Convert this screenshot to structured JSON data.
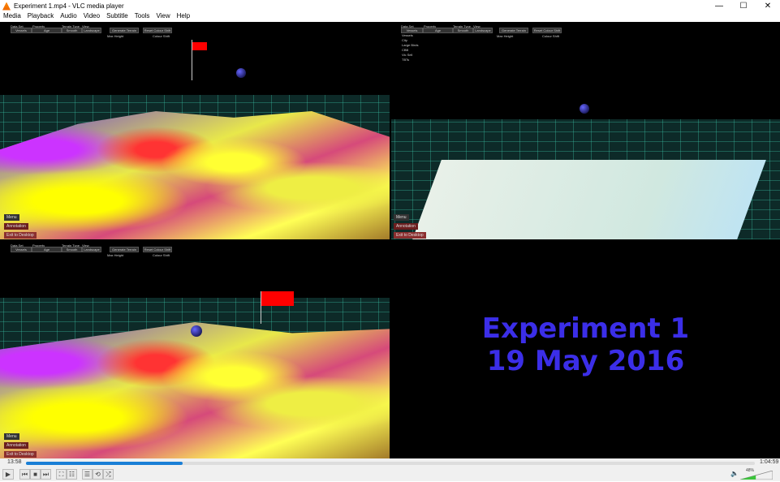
{
  "window": {
    "title": "Experiment 1.mp4 - VLC media player",
    "minimize": "—",
    "maximize": "☐",
    "close": "✕"
  },
  "menu": [
    "Media",
    "Playback",
    "Audio",
    "Video",
    "Subtitle",
    "Tools",
    "View",
    "Help"
  ],
  "video": {
    "panel_labels": {
      "data_set": "Data Set",
      "property": "Property",
      "terrain_type": "Terrain Type",
      "view": "View",
      "generate": "Generate Terrain",
      "reset": "Reset Colour Shift",
      "max_height": "Max Height",
      "colour_shift": "Colour Shift"
    },
    "top_left": {
      "data_set": "Vessels",
      "property": "Age",
      "terrain_type": "Smooth",
      "view": "Landscape",
      "buttons": [
        "Menu",
        "Annotation",
        "Exit to Desktop"
      ]
    },
    "top_right": {
      "data_set": "Vessels",
      "property": "Age",
      "terrain_type": "Smooth",
      "view": "Landscape",
      "list": [
        "Vessels",
        "City",
        "Large Birds",
        "CBB",
        "Vic Sell",
        "TBTs"
      ],
      "buttons": [
        "Menu",
        "Annotation",
        "Exit to Desktop"
      ]
    },
    "bottom_left": {
      "data_set": "Vessels",
      "property": "Age",
      "terrain_type": "Smooth",
      "view": "Landscape",
      "buttons": [
        "Menu",
        "Annotation",
        "Exit to Desktop"
      ]
    },
    "overlay": {
      "line1": "Experiment 1",
      "line2": "19 May 2016",
      "color": "#3b2ee8"
    }
  },
  "playback": {
    "elapsed": "13:58",
    "total": "1:04:59",
    "progress_percent": 21.5,
    "volume_label": "48%",
    "volume_percent": 48,
    "accent": "#1a7fd6"
  },
  "controls": {
    "play": "▶",
    "prev": "⏮",
    "stop": "■",
    "next": "⏭",
    "fullscreen": "⛶",
    "extended": "☷",
    "playlist": "☰",
    "loop": "⟲",
    "shuffle": "⤮",
    "speaker": "🔈"
  }
}
